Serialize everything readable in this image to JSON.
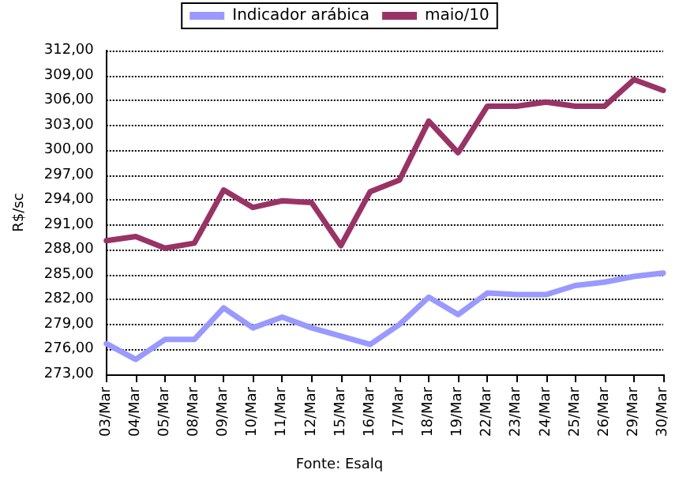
{
  "chart_data": {
    "type": "line",
    "ylabel": "R$/sc",
    "categories": [
      "03/Mar",
      "04/Mar",
      "05/Mar",
      "08/Mar",
      "09/Mar",
      "10/Mar",
      "11/Mar",
      "12/Mar",
      "15/Mar",
      "16/Mar",
      "17/Mar",
      "18/Mar",
      "19/Mar",
      "22/Mar",
      "23/Mar",
      "24/Mar",
      "25/Mar",
      "26/Mar",
      "29/Mar",
      "30/Mar"
    ],
    "series": [
      {
        "name": "Indicador arábica",
        "color": "#9999ff",
        "values": [
          276.7,
          274.8,
          277.2,
          277.2,
          281.0,
          278.6,
          279.9,
          278.6,
          277.6,
          276.6,
          279.0,
          282.3,
          280.2,
          282.8,
          282.6,
          282.6,
          283.7,
          284.1,
          284.8,
          285.2
        ]
      },
      {
        "name": "maio/10",
        "color": "#993366",
        "values": [
          289.1,
          289.6,
          288.2,
          288.8,
          295.2,
          293.1,
          293.9,
          293.7,
          288.5,
          295.0,
          296.4,
          303.5,
          299.7,
          305.3,
          305.3,
          305.8,
          305.3,
          305.3,
          308.5,
          307.2
        ]
      }
    ],
    "ylim": [
      273,
      312
    ],
    "yticks": [
      {
        "value": 273,
        "label": "273,00"
      },
      {
        "value": 276,
        "label": "276,00"
      },
      {
        "value": 279,
        "label": "279,00"
      },
      {
        "value": 282,
        "label": "282,00"
      },
      {
        "value": 285,
        "label": "285,00"
      },
      {
        "value": 288,
        "label": "288,00"
      },
      {
        "value": 291,
        "label": "291,00"
      },
      {
        "value": 294,
        "label": "294,00"
      },
      {
        "value": 297,
        "label": "297,00"
      },
      {
        "value": 300,
        "label": "300,00"
      },
      {
        "value": 303,
        "label": "303,00"
      },
      {
        "value": 306,
        "label": "306,00"
      },
      {
        "value": 309,
        "label": "309,00"
      },
      {
        "value": 312,
        "label": "312,00"
      }
    ],
    "grid": "y",
    "legend": "top",
    "marker": "none",
    "line_style": "solid",
    "annotations": [
      "Fonte: Esalq"
    ]
  }
}
